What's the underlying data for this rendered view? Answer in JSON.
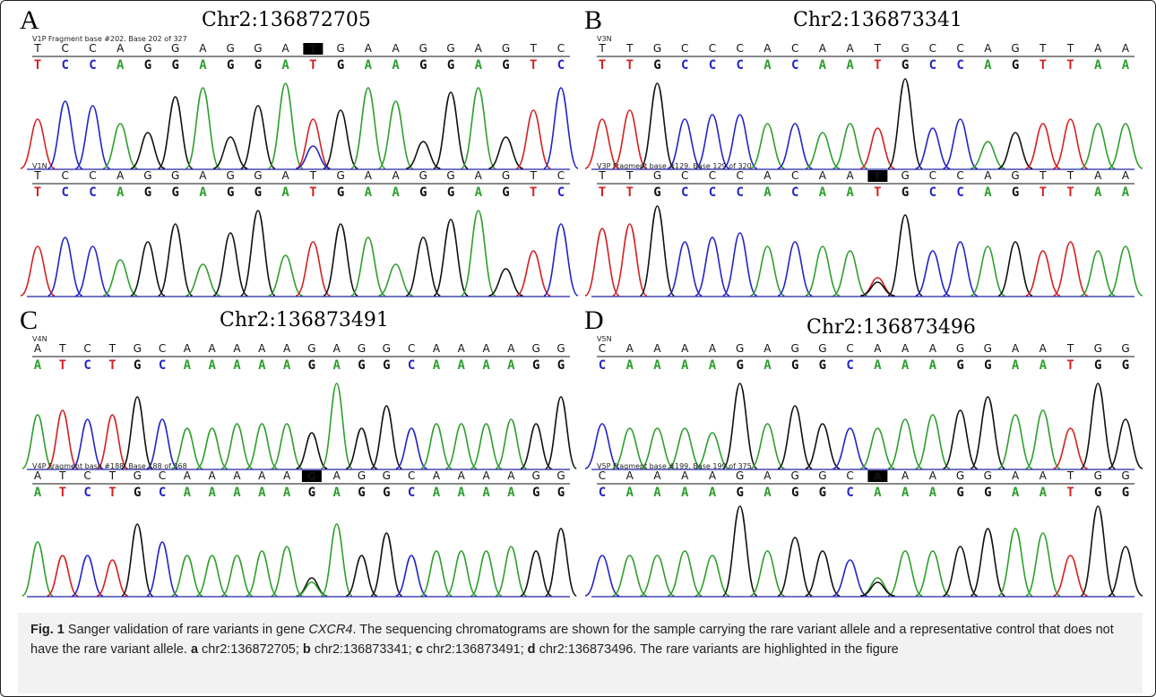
{
  "figure": {
    "caption": {
      "label": "Fig. 1",
      "text_before_gene": "Sanger validation of rare variants in gene",
      "gene": "CXCR4",
      "text_main": ". The sequencing chromatograms are shown for the sample carrying the rare variant allele and a representative control that does not have the rare variant allele.",
      "items": [
        {
          "key": "a",
          "value": "chr2:136872705;"
        },
        {
          "key": "b",
          "value": "chr2:136873341;"
        },
        {
          "key": "c",
          "value": "chr2:136873491;"
        },
        {
          "key": "d",
          "value": "chr2:136873496."
        }
      ],
      "text_end": "The rare variants are highlighted in the figure"
    },
    "colors": {
      "A": "#2e9e2e",
      "C": "#2323c8",
      "G": "#111111",
      "T": "#d42020"
    },
    "panels": [
      {
        "letter": "A",
        "title": "Chr2:136872705",
        "traces": [
          {
            "label": "V1P Fragment base #202. Base 202 of 327",
            "top_seq": "TCCAGGAGGATGAAGGAGTC",
            "bottom_seq": "TCCAGGAGGATGAAGGAGTC",
            "highlight_index": 10,
            "highlight_char": "T",
            "heights": [
              0.55,
              0.75,
              0.7,
              0.5,
              0.4,
              0.8,
              0.9,
              0.35,
              0.7,
              0.95,
              0.55,
              0.65,
              0.9,
              0.75,
              0.3,
              0.85,
              0.9,
              0.35,
              0.65,
              0.9
            ],
            "secondary": [
              {
                "i": 10,
                "base": "C",
                "h": 0.25
              }
            ]
          },
          {
            "label": "V1N",
            "top_seq": "TCCAGGAGGATGAAGGAGTC",
            "bottom_seq": "TCCAGGAGGATGAAGGAGTC",
            "highlight_index": -1,
            "highlight_char": "",
            "heights": [
              0.55,
              0.65,
              0.55,
              0.4,
              0.6,
              0.8,
              0.35,
              0.7,
              0.95,
              0.45,
              0.6,
              0.8,
              0.65,
              0.35,
              0.65,
              0.85,
              0.95,
              0.3,
              0.5,
              0.8
            ],
            "secondary": []
          }
        ]
      },
      {
        "letter": "B",
        "title": "Chr2:136873341",
        "traces": [
          {
            "label": "V3N",
            "top_seq": "TTGCCCACAATGCCAGTTAA",
            "bottom_seq": "TTGCCCACAATGCCAGTTAA",
            "highlight_index": -1,
            "highlight_char": "",
            "heights": [
              0.55,
              0.65,
              0.95,
              0.55,
              0.6,
              0.6,
              0.5,
              0.5,
              0.4,
              0.5,
              0.45,
              1.0,
              0.45,
              0.55,
              0.3,
              0.4,
              0.5,
              0.55,
              0.5,
              0.5
            ],
            "secondary": []
          },
          {
            "label": "V3P Fragment base #129. Base 129 of 320",
            "top_seq": "TTGCCCACAATGCCAGTTAA",
            "bottom_seq": "TTGCCCACAATGCCAGTTAA",
            "highlight_index": 10,
            "highlight_char": "T",
            "heights": [
              0.75,
              0.8,
              1.0,
              0.6,
              0.65,
              0.7,
              0.55,
              0.6,
              0.55,
              0.5,
              0.2,
              0.9,
              0.5,
              0.6,
              0.55,
              0.6,
              0.5,
              0.6,
              0.5,
              0.55
            ],
            "secondary": [
              {
                "i": 10,
                "base": "G",
                "h": 0.15
              }
            ]
          }
        ]
      },
      {
        "letter": "C",
        "title": "Chr2:136873491",
        "traces": [
          {
            "label": "V4N",
            "top_seq": "ATCTGCAAAAAGAGGCAAAAGG",
            "bottom_seq": "ATCTGCAAAAAGAGGCAAAAGG",
            "highlight_index": -1,
            "highlight_char": "",
            "heights": [
              0.6,
              0.65,
              0.55,
              0.6,
              0.8,
              0.55,
              0.45,
              0.45,
              0.5,
              0.5,
              0.5,
              0.4,
              0.95,
              0.45,
              0.7,
              0.45,
              0.5,
              0.5,
              0.5,
              0.55,
              0.5,
              0.8
            ],
            "secondary": []
          },
          {
            "label": "V4P Fragment base #188. Base 188 of 368",
            "top_seq": "ATCTGCAAAAAGAGGCAAAAGG",
            "bottom_seq": "ATCTGCAAAAAGAGGCAAAAGG",
            "highlight_index": 11,
            "highlight_char": "G",
            "heights": [
              0.6,
              0.45,
              0.45,
              0.4,
              0.8,
              0.6,
              0.45,
              0.45,
              0.45,
              0.5,
              0.55,
              0.2,
              0.8,
              0.45,
              0.7,
              0.45,
              0.5,
              0.5,
              0.5,
              0.55,
              0.5,
              0.75
            ],
            "secondary": [
              {
                "i": 11,
                "base": "A",
                "h": 0.15
              }
            ]
          }
        ]
      },
      {
        "letter": "D",
        "title": "Chr2:136873496",
        "traces": [
          {
            "label": "V5N",
            "top_seq": "CAAAAGAGGCAAAGGAATGG",
            "bottom_seq": "CAAAAGAGGCAAAGGAATGG",
            "highlight_index": -1,
            "highlight_char": "",
            "heights": [
              0.5,
              0.45,
              0.45,
              0.45,
              0.4,
              0.95,
              0.5,
              0.7,
              0.5,
              0.45,
              0.45,
              0.55,
              0.6,
              0.65,
              0.8,
              0.6,
              0.65,
              0.45,
              0.95,
              0.55
            ],
            "secondary": []
          },
          {
            "label": "V5P Fragment base #199. Base 199 of 375",
            "top_seq": "CAAAAGAGGCAAAGGAATGG",
            "bottom_seq": "CAAAAGAGGCAAAGGAATGG",
            "highlight_index": 10,
            "highlight_char": "A",
            "heights": [
              0.45,
              0.45,
              0.45,
              0.5,
              0.45,
              1.0,
              0.5,
              0.65,
              0.5,
              0.4,
              0.2,
              0.5,
              0.5,
              0.55,
              0.75,
              0.75,
              0.7,
              0.45,
              1.0,
              0.55
            ],
            "secondary": [
              {
                "i": 10,
                "base": "G",
                "h": 0.15
              }
            ]
          }
        ]
      }
    ]
  }
}
